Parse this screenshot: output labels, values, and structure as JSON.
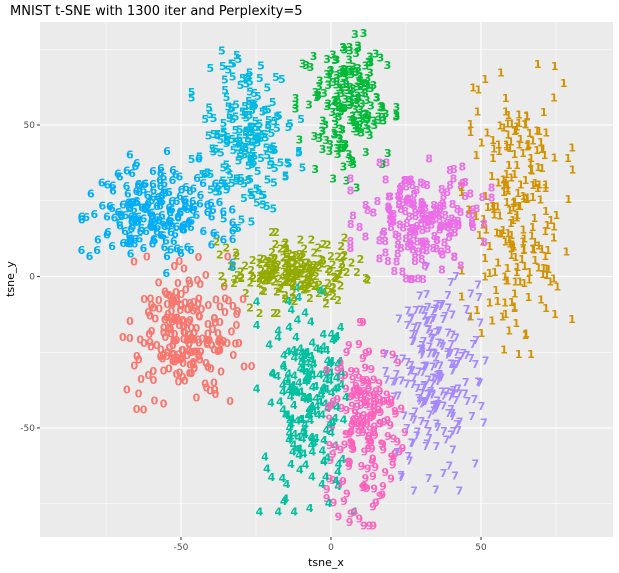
{
  "chart_data": {
    "type": "scatter",
    "title": "MNIST t-SNE with 1300 iter and Perplexity=5",
    "xlabel": "tsne_x",
    "ylabel": "tsne_y",
    "xlim": [
      -97,
      94
    ],
    "ylim": [
      -86,
      84
    ],
    "x_ticks": [
      -50,
      0,
      50
    ],
    "y_ticks": [
      -50,
      0,
      50
    ],
    "x_tick_labels": [
      "-50",
      "0",
      "50"
    ],
    "y_tick_labels": [
      "-50",
      "0",
      "50"
    ],
    "grid": true,
    "panel_background": "#ebebeb",
    "grid_color": "#ffffff",
    "marker": "digit glyph",
    "series": [
      {
        "label": "0",
        "color": "#F8766D",
        "center": [
          -50,
          -20
        ],
        "spread": [
          14,
          15
        ],
        "count": 220
      },
      {
        "label": "1",
        "color": "#D39200",
        "center": [
          62,
          20
        ],
        "spread": [
          11,
          30
        ],
        "count": 220
      },
      {
        "label": "2",
        "color": "#93AA00",
        "center": [
          -13,
          0
        ],
        "spread": [
          15,
          8
        ],
        "count": 200
      },
      {
        "label": "3",
        "color": "#00BA38",
        "center": [
          5,
          55
        ],
        "spread": [
          10,
          16
        ],
        "count": 200
      },
      {
        "label": "4",
        "color": "#00C19F",
        "center": [
          -8,
          -42
        ],
        "spread": [
          10,
          22
        ],
        "count": 200
      },
      {
        "label": "5",
        "color": "#00B9E3",
        "center": [
          -28,
          45
        ],
        "spread": [
          11,
          18
        ],
        "count": 200
      },
      {
        "label": "6",
        "color": "#00ADFA",
        "center": [
          -58,
          20
        ],
        "spread": [
          15,
          12
        ],
        "count": 210
      },
      {
        "label": "7",
        "color": "#A58AFF",
        "center": [
          35,
          -35
        ],
        "spread": [
          10,
          22
        ],
        "count": 210
      },
      {
        "label": "8",
        "color": "#EB6DE8",
        "center": [
          30,
          18
        ],
        "spread": [
          14,
          12
        ],
        "count": 200
      },
      {
        "label": "9",
        "color": "#FF62BC",
        "center": [
          12,
          -50
        ],
        "spread": [
          8,
          20
        ],
        "count": 190
      }
    ]
  }
}
